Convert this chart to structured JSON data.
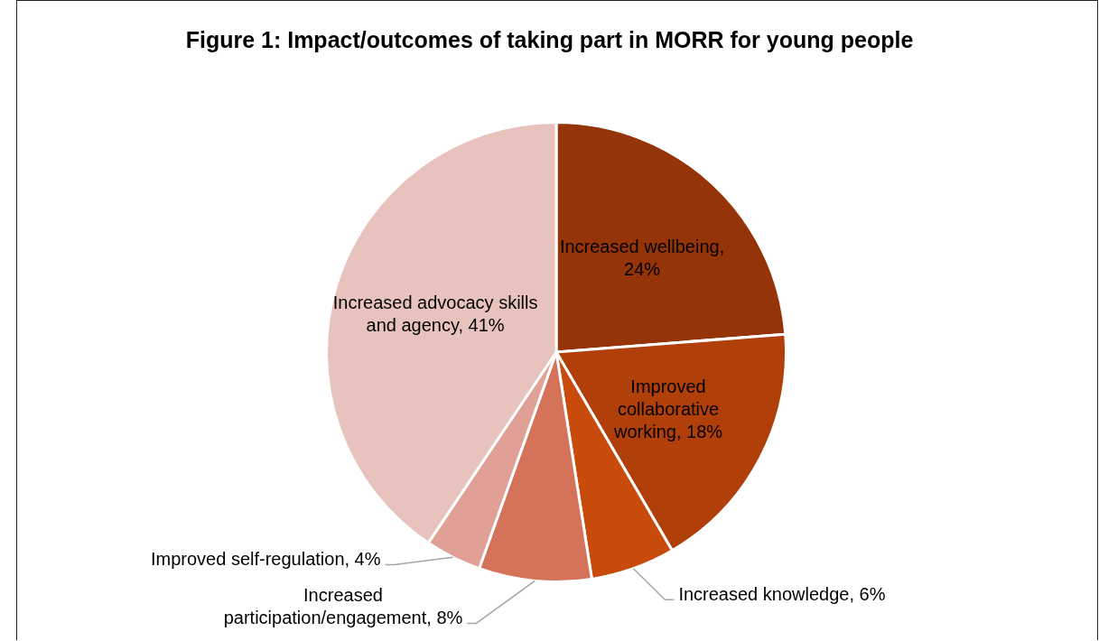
{
  "chart_data": {
    "type": "pie",
    "title": "Figure 1: Impact/outcomes of taking part in MORR for young people",
    "categories": [
      null,
      null,
      null,
      null,
      null,
      null
    ],
    "values": [
      24,
      18,
      6,
      8,
      4,
      41
    ],
    "colors": [
      "#963409",
      "#b03f0a",
      "#c84b0c",
      "#d4735a",
      "#e0a095",
      "#e8c3bd"
    ],
    "value_labels": [
      "Increased wellbeing, 24%",
      "Improved collaborative working, 18%",
      "Increased knowledge, 6%",
      "Increased participation/engagement, 8%",
      "Improved self-regulation, 4%",
      "Increased advocacy skills and agency, 41%"
    ],
    "legend": false
  }
}
